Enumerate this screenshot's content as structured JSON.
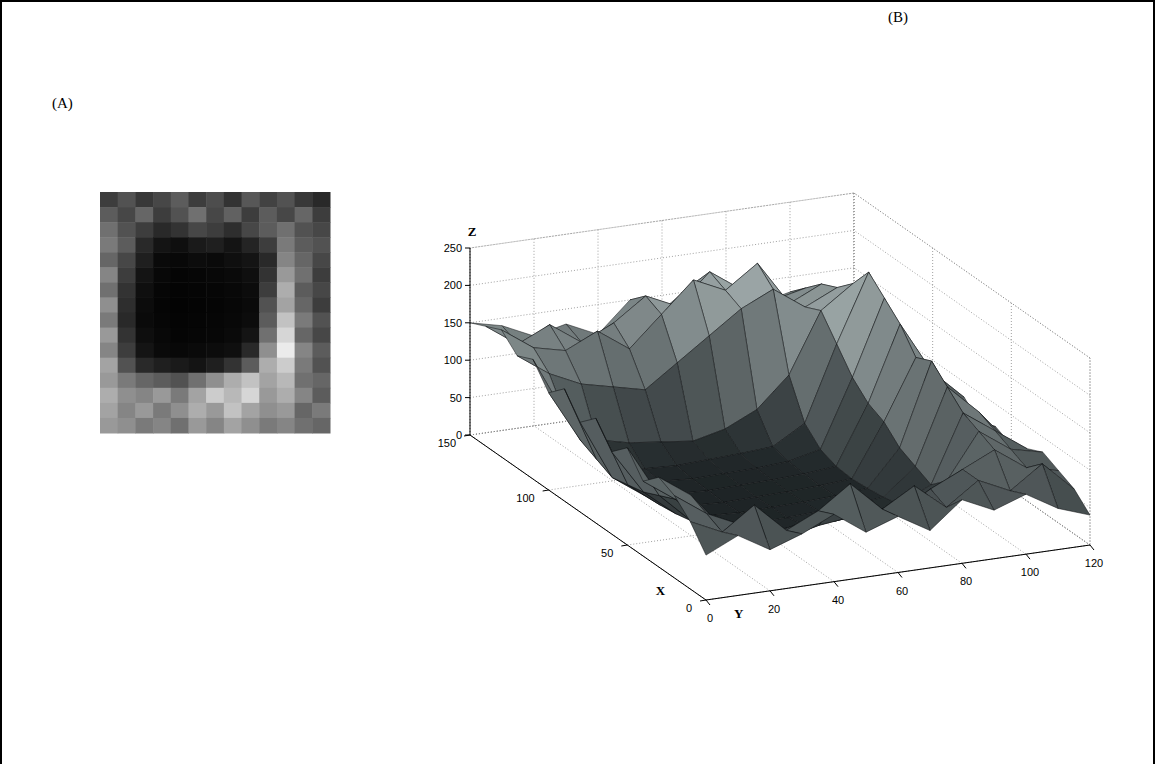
{
  "chart_data": [
    {
      "type": "image",
      "title": "(A)",
      "tick_labels": false,
      "zlim": [
        0,
        250
      ],
      "z": [
        [
          60,
          80,
          55,
          70,
          90,
          60,
          75,
          50,
          85,
          65,
          80,
          55,
          40
        ],
        [
          90,
          70,
          100,
          60,
          80,
          110,
          70,
          95,
          60,
          90,
          70,
          100,
          60
        ],
        [
          110,
          80,
          60,
          40,
          50,
          70,
          60,
          45,
          70,
          90,
          110,
          80,
          70
        ],
        [
          120,
          90,
          40,
          20,
          15,
          25,
          30,
          20,
          35,
          60,
          120,
          90,
          80
        ],
        [
          100,
          70,
          30,
          10,
          8,
          12,
          10,
          15,
          20,
          40,
          130,
          100,
          70
        ],
        [
          130,
          60,
          20,
          8,
          5,
          6,
          8,
          10,
          15,
          50,
          150,
          110,
          60
        ],
        [
          110,
          50,
          15,
          6,
          4,
          5,
          6,
          8,
          12,
          60,
          170,
          90,
          70
        ],
        [
          140,
          45,
          12,
          5,
          3,
          4,
          5,
          7,
          10,
          80,
          160,
          100,
          60
        ],
        [
          120,
          40,
          10,
          6,
          4,
          5,
          6,
          8,
          12,
          90,
          190,
          120,
          80
        ],
        [
          150,
          50,
          14,
          8,
          5,
          6,
          7,
          10,
          20,
          110,
          210,
          100,
          70
        ],
        [
          130,
          60,
          20,
          10,
          8,
          10,
          12,
          15,
          40,
          140,
          230,
          130,
          90
        ],
        [
          160,
          80,
          40,
          30,
          25,
          20,
          30,
          50,
          90,
          170,
          200,
          120,
          80
        ],
        [
          150,
          120,
          100,
          90,
          80,
          110,
          140,
          170,
          190,
          160,
          180,
          110,
          100
        ],
        [
          170,
          140,
          130,
          150,
          120,
          160,
          200,
          180,
          210,
          150,
          170,
          130,
          90
        ],
        [
          160,
          130,
          150,
          120,
          140,
          170,
          150,
          190,
          160,
          140,
          150,
          100,
          120
        ],
        [
          150,
          140,
          120,
          130,
          110,
          150,
          130,
          160,
          140,
          120,
          130,
          110,
          100
        ]
      ]
    },
    {
      "type": "surface",
      "title": "(B)",
      "xlabel": "X",
      "ylabel": "Y",
      "zlabel": "Z",
      "x": [
        0,
        10,
        20,
        30,
        40,
        50,
        60,
        70,
        80,
        90,
        100,
        110,
        120,
        130,
        140,
        150
      ],
      "y": [
        0,
        10,
        20,
        30,
        40,
        50,
        60,
        70,
        80,
        90,
        100,
        110,
        120
      ],
      "xlim": [
        0,
        150
      ],
      "ylim": [
        0,
        120
      ],
      "zlim": [
        0,
        250
      ],
      "xticks": [
        0,
        50,
        100,
        150
      ],
      "yticks": [
        0,
        20,
        40,
        60,
        80,
        100,
        120
      ],
      "zticks": [
        0,
        50,
        100,
        150,
        200,
        250
      ],
      "grid": true,
      "z": [
        [
          60,
          80,
          55,
          70,
          90,
          60,
          75,
          50,
          85,
          65,
          80,
          55,
          40
        ],
        [
          90,
          70,
          100,
          60,
          80,
          110,
          70,
          95,
          60,
          90,
          70,
          100,
          60
        ],
        [
          110,
          80,
          60,
          40,
          50,
          70,
          60,
          45,
          70,
          90,
          110,
          80,
          70
        ],
        [
          120,
          90,
          40,
          20,
          15,
          25,
          30,
          20,
          35,
          60,
          120,
          90,
          80
        ],
        [
          100,
          70,
          30,
          10,
          8,
          12,
          10,
          15,
          20,
          40,
          130,
          100,
          70
        ],
        [
          130,
          60,
          20,
          8,
          5,
          6,
          8,
          10,
          15,
          50,
          150,
          110,
          60
        ],
        [
          110,
          50,
          15,
          6,
          4,
          5,
          6,
          8,
          12,
          60,
          170,
          90,
          70
        ],
        [
          140,
          45,
          12,
          5,
          3,
          4,
          5,
          7,
          10,
          80,
          160,
          100,
          60
        ],
        [
          120,
          40,
          10,
          6,
          4,
          5,
          6,
          8,
          12,
          90,
          190,
          120,
          80
        ],
        [
          150,
          50,
          14,
          8,
          5,
          6,
          7,
          10,
          20,
          110,
          210,
          100,
          70
        ],
        [
          130,
          60,
          20,
          10,
          8,
          10,
          12,
          15,
          40,
          140,
          230,
          130,
          90
        ],
        [
          160,
          80,
          40,
          30,
          25,
          20,
          30,
          50,
          90,
          170,
          200,
          120,
          80
        ],
        [
          150,
          120,
          100,
          90,
          80,
          110,
          140,
          170,
          190,
          160,
          180,
          110,
          100
        ],
        [
          170,
          140,
          130,
          150,
          120,
          160,
          200,
          180,
          210,
          150,
          170,
          130,
          90
        ],
        [
          160,
          130,
          150,
          120,
          140,
          170,
          150,
          190,
          160,
          140,
          150,
          100,
          120
        ],
        [
          150,
          140,
          120,
          130,
          110,
          150,
          130,
          160,
          140,
          120,
          130,
          110,
          100
        ]
      ]
    }
  ]
}
